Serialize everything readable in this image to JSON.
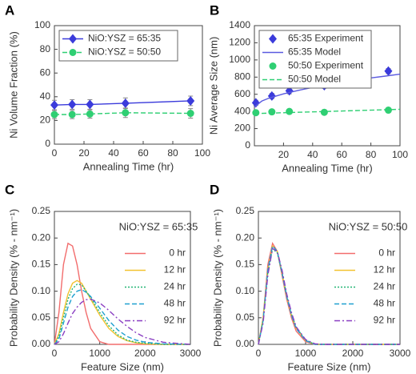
{
  "chart_data": [
    {
      "type": "errorbar",
      "panel_label": "A",
      "xlabel": "Annealing Time (hr)",
      "ylabel": "Ni Volume Fraction (%)",
      "xlim": [
        0,
        100
      ],
      "xticks": [
        0,
        20,
        40,
        60,
        80,
        100
      ],
      "ylim": [
        0,
        100
      ],
      "yticks": [
        0,
        20,
        40,
        60,
        80,
        100
      ],
      "legend": "upper left",
      "legend_frame": true,
      "x": [
        0,
        12,
        24,
        48,
        92
      ],
      "series": [
        {
          "name": "NiO:YSZ = 65:35",
          "color": "#3b3bdb",
          "marker": "diamond",
          "line": "solid",
          "values": [
            33,
            33.5,
            33.5,
            34.5,
            36.5
          ],
          "errors": [
            4,
            4,
            4,
            4.5,
            4
          ]
        },
        {
          "name": "NiO:YSZ = 50:50",
          "color": "#2fcf73",
          "marker": "circle",
          "line": "dashed",
          "values": [
            25,
            25,
            25.5,
            26.5,
            26
          ],
          "errors": [
            3.5,
            3.5,
            3.5,
            4,
            4
          ]
        }
      ]
    },
    {
      "type": "errorbar",
      "panel_label": "B",
      "xlabel": "Annealing Time (hr)",
      "ylabel": "Ni Average Size (nm)",
      "xlim": [
        0,
        100
      ],
      "xticks": [
        20,
        40,
        60,
        80,
        100
      ],
      "ylim": [
        0,
        1400
      ],
      "yticks": [
        0,
        200,
        400,
        600,
        800,
        1000,
        1200,
        1400
      ],
      "legend": "upper left",
      "legend_frame": true,
      "series": [
        {
          "name": "65:35 Experiment",
          "color": "#3b3bdb",
          "marker": "diamond",
          "x": [
            1,
            12,
            24,
            48,
            92
          ],
          "values": [
            500,
            580,
            640,
            700,
            870
          ],
          "errors": [
            30,
            30,
            35,
            30,
            30
          ]
        },
        {
          "name": "65:35 Model",
          "color": "#5a5ae0",
          "line": "solid",
          "x": [
            0,
            5,
            10,
            20,
            30,
            40,
            50,
            60,
            70,
            80,
            90,
            100
          ],
          "values": [
            450,
            520,
            555,
            605,
            645,
            680,
            710,
            740,
            765,
            790,
            812,
            835
          ]
        },
        {
          "name": "50:50 Experiment",
          "color": "#2fcf73",
          "marker": "circle",
          "x": [
            1,
            12,
            24,
            48,
            92
          ],
          "values": [
            385,
            395,
            400,
            390,
            415
          ],
          "errors": [
            25,
            25,
            25,
            25,
            25
          ]
        },
        {
          "name": "50:50 Model",
          "color": "#2fcf73",
          "line": "dashed",
          "x": [
            0,
            100
          ],
          "values": [
            375,
            425
          ]
        }
      ]
    },
    {
      "type": "line",
      "panel_label": "C",
      "annotation": "NiO:YSZ = 65:35",
      "xlabel": "Feature Size (nm)",
      "ylabel": "Probability Density (% - nm⁻¹)",
      "xlim": [
        0,
        3000
      ],
      "xticks": [
        0,
        1000,
        2000,
        3000
      ],
      "ylim": [
        0,
        0.25
      ],
      "yticks": [
        {
          "value": 0,
          "label": "0.00"
        },
        0.05,
        {
          "value": 0.1,
          "label": "0.10"
        },
        0.15,
        {
          "value": 0.2,
          "label": "0.20"
        },
        0.25
      ],
      "legend": "upper right",
      "legend_frame": false,
      "x": [
        0,
        100,
        200,
        300,
        400,
        500,
        600,
        700,
        800,
        1000,
        1200,
        1400,
        1600,
        1800,
        2000,
        2400,
        3000
      ],
      "series": [
        {
          "name": "0 hr",
          "color": "#f26d6d",
          "line": "solid",
          "values": [
            0,
            0.06,
            0.15,
            0.19,
            0.185,
            0.15,
            0.1,
            0.06,
            0.03,
            0.005,
            0,
            0,
            0,
            0,
            0,
            0,
            0
          ]
        },
        {
          "name": "12 hr",
          "color": "#f2c230",
          "line": "solid",
          "values": [
            0,
            0.02,
            0.06,
            0.095,
            0.115,
            0.12,
            0.115,
            0.1,
            0.085,
            0.055,
            0.03,
            0.015,
            0.007,
            0.003,
            0.001,
            0,
            0
          ]
        },
        {
          "name": "24 hr",
          "color": "#22b573",
          "line": "dotted",
          "values": [
            0,
            0.015,
            0.05,
            0.085,
            0.105,
            0.113,
            0.112,
            0.1,
            0.088,
            0.06,
            0.035,
            0.018,
            0.008,
            0.004,
            0.002,
            0,
            0
          ]
        },
        {
          "name": "48 hr",
          "color": "#1fa0d0",
          "line": "dashed",
          "values": [
            0,
            0.01,
            0.04,
            0.07,
            0.09,
            0.1,
            0.103,
            0.098,
            0.09,
            0.068,
            0.045,
            0.027,
            0.015,
            0.008,
            0.004,
            0.001,
            0
          ]
        },
        {
          "name": "92 hr",
          "color": "#8a3fc2",
          "line": "dashdot",
          "values": [
            0,
            0.005,
            0.02,
            0.04,
            0.058,
            0.07,
            0.079,
            0.084,
            0.085,
            0.078,
            0.064,
            0.048,
            0.034,
            0.022,
            0.013,
            0.004,
            0
          ]
        }
      ]
    },
    {
      "type": "line",
      "panel_label": "D",
      "annotation": "NiO:YSZ = 50:50",
      "xlabel": "Feature Size (nm)",
      "ylabel": "Probability Density (% - nm⁻¹)",
      "xlim": [
        0,
        3000
      ],
      "xticks": [
        0,
        1000,
        2000,
        3000
      ],
      "ylim": [
        0,
        0.25
      ],
      "yticks": [
        {
          "value": 0,
          "label": "0.00"
        },
        0.05,
        {
          "value": 0.1,
          "label": "0.10"
        },
        0.15,
        {
          "value": 0.2,
          "label": "0.20"
        },
        0.25
      ],
      "legend": "upper right",
      "legend_frame": false,
      "x": [
        0,
        100,
        200,
        300,
        400,
        500,
        600,
        700,
        800,
        1000,
        1200,
        1400,
        1600,
        1800,
        2000,
        2400,
        3000
      ],
      "series": [
        {
          "name": "0 hr",
          "color": "#f26d6d",
          "line": "solid",
          "values": [
            0,
            0.05,
            0.15,
            0.19,
            0.175,
            0.13,
            0.085,
            0.05,
            0.025,
            0.005,
            0,
            0,
            0,
            0,
            0,
            0,
            0
          ]
        },
        {
          "name": "12 hr",
          "color": "#f2c230",
          "line": "solid",
          "values": [
            0,
            0.05,
            0.14,
            0.185,
            0.175,
            0.135,
            0.09,
            0.055,
            0.03,
            0.007,
            0,
            0,
            0,
            0,
            0,
            0,
            0
          ]
        },
        {
          "name": "24 hr",
          "color": "#22b573",
          "line": "dotted",
          "values": [
            0,
            0.045,
            0.135,
            0.18,
            0.172,
            0.135,
            0.092,
            0.057,
            0.032,
            0.008,
            0,
            0,
            0,
            0,
            0,
            0,
            0
          ]
        },
        {
          "name": "48 hr",
          "color": "#1fa0d0",
          "line": "dashed",
          "values": [
            0,
            0.045,
            0.14,
            0.185,
            0.175,
            0.135,
            0.09,
            0.055,
            0.03,
            0.007,
            0,
            0,
            0,
            0,
            0,
            0,
            0
          ]
        },
        {
          "name": "92 hr",
          "color": "#8a3fc2",
          "line": "dashdot",
          "values": [
            0,
            0.04,
            0.13,
            0.18,
            0.175,
            0.14,
            0.095,
            0.06,
            0.033,
            0.009,
            0.001,
            0,
            0,
            0,
            0,
            0,
            0
          ]
        }
      ]
    }
  ]
}
